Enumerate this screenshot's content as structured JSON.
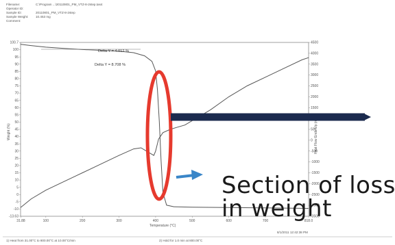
{
  "header": {
    "rows": [
      {
        "label": "Filename:",
        "value": "C:\\Program ...\\20110801_PM_VTZ-8-2step.tas4"
      },
      {
        "label": "Operator ID:",
        "value": ""
      },
      {
        "label": "Sample ID:",
        "value": "20110801_PM_VTZ-8-2step"
      },
      {
        "label": "Sample Weight:",
        "value": "10.453 mg"
      },
      {
        "label": "Comment:",
        "value": ""
      }
    ]
  },
  "footer": {
    "left": "1) Heat from 31.00°C to 800.00°C at 10.00°C/min",
    "right": "2) Hold for 1.0 min at 800.00°C",
    "timestamp": "8/1/2011 12:42:38 PM"
  },
  "callout": {
    "line1": "Section of loss",
    "line2": "in weight"
  },
  "colors": {
    "callout_arrow": "#1b2a4e",
    "small_arrow": "#3a86c8",
    "highlight_ellipse": "#e63a2e",
    "curve": "#555555"
  },
  "chart_data": {
    "type": "line",
    "xlabel": "Temperature (°C)",
    "ylabel_left": "Weight (%)",
    "ylabel_right": "Heat Flow Endo Up (mW)",
    "xlim": [
      31.0,
      818.0
    ],
    "ylim_left": [
      -10,
      100
    ],
    "ylim_right": [
      -3500,
      4500
    ],
    "x_ticks": [
      "31.88",
      "100",
      "200",
      "300",
      "400",
      "500",
      "600",
      "700",
      "818.0"
    ],
    "y_left_ticks": [
      "100.7",
      "100",
      "95",
      "90",
      "85",
      "80",
      "75",
      "70",
      "65",
      "60",
      "55",
      "50",
      "45",
      "40",
      "35",
      "30",
      "25",
      "20",
      "15",
      "10",
      "5",
      "0",
      "-5",
      "-10",
      "-13.63"
    ],
    "y_right_ticks": [
      "4500",
      "4000",
      "3500",
      "3000",
      "2500",
      "2000",
      "1500",
      "1000",
      "500",
      "0",
      "-500",
      "-1000",
      "-1500",
      "-2000",
      "-2500",
      "-3000",
      "-3500"
    ],
    "annotations": [
      "Delta Y = 4.012 %",
      "Delta Y = 8.708 %"
    ],
    "series": [
      {
        "axis": "left",
        "x": [
          31,
          60,
          100,
          150,
          200,
          250,
          300,
          340,
          370,
          390,
          400,
          405,
          410,
          415,
          420,
          430,
          450,
          500,
          600,
          700,
          818
        ],
        "values": [
          98.8,
          98.0,
          97.0,
          96.2,
          95.5,
          95.0,
          94.5,
          93.5,
          91.5,
          88.0,
          82.0,
          70.0,
          50.0,
          25.0,
          5.0,
          -3.0,
          -4.0,
          -4.3,
          -4.5,
          -4.7,
          -5.0
        ]
      },
      {
        "axis": "right",
        "x": [
          31,
          60,
          100,
          150,
          200,
          250,
          300,
          340,
          360,
          375,
          385,
          395,
          400,
          408,
          420,
          440,
          460,
          480,
          500,
          550,
          600,
          650,
          700,
          750,
          800,
          818
        ],
        "values": [
          -3100,
          -2700,
          -2300,
          -1900,
          -1500,
          -1100,
          -700,
          -400,
          -350,
          -500,
          -600,
          -700,
          -500,
          50,
          350,
          500,
          600,
          700,
          900,
          1400,
          2000,
          2500,
          2900,
          3300,
          3700,
          3800
        ]
      }
    ]
  }
}
